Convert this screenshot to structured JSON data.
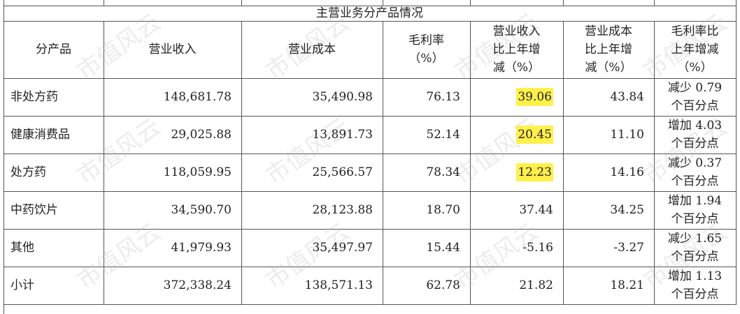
{
  "table": {
    "title": "主营业务分产品情况",
    "header": [
      [
        "分产品"
      ],
      [
        "营业收入"
      ],
      [
        "营业成本"
      ],
      [
        "毛利率",
        "（%）"
      ],
      [
        "营业收入",
        "比上年增",
        "减（%）"
      ],
      [
        "营业成本",
        "比上年增",
        "减（%）"
      ],
      [
        "毛利率比",
        "上年增减",
        "（%）"
      ]
    ],
    "rows": [
      [
        "非处方药",
        "148,681.78",
        "35,490.98",
        "76.13",
        "39.06",
        "43.84",
        [
          "减少 0.79",
          "个百分点"
        ]
      ],
      [
        "健康消费品",
        "29,025.88",
        "13,891.73",
        "52.14",
        "20.45",
        "11.10",
        [
          "增加 4.03",
          "个百分点"
        ]
      ],
      [
        "处方药",
        "118,059.95",
        "25,566.57",
        "78.34",
        "12.23",
        "14.16",
        [
          "减少 0.37",
          "个百分点"
        ]
      ],
      [
        "中药饮片",
        "34,590.70",
        "28,123.88",
        "18.70",
        "37.44",
        "34.25",
        [
          "增加 1.94",
          "个百分点"
        ]
      ],
      [
        "其他",
        "41,979.93",
        "35,497.97",
        "15.44",
        "-5.16",
        "-3.27",
        [
          "减少 1.65",
          "个百分点"
        ]
      ],
      [
        "小计",
        "372,338.24",
        "138,571.13",
        "62.78",
        "21.82",
        "18.21",
        [
          "增加 1.13",
          "个百分点"
        ]
      ]
    ]
  },
  "watermark": "市值风云"
}
